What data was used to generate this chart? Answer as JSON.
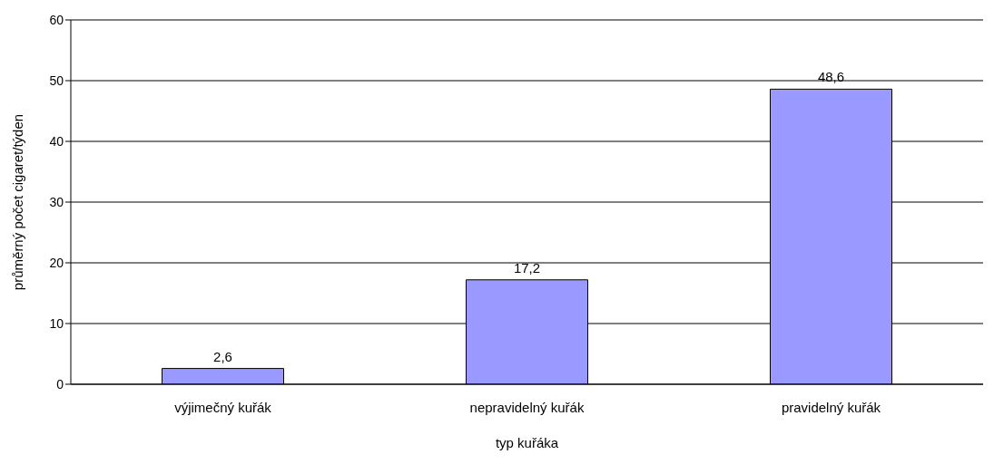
{
  "chart_data": {
    "type": "bar",
    "xlabel": "typ kuřáka",
    "ylabel": "průměrný počet cigaret/týden",
    "categories": [
      "výjimečný kuřák",
      "nepravidelný kuřák",
      "pravidelný kuřák"
    ],
    "values": [
      2.6,
      17.2,
      48.6
    ],
    "value_labels": [
      "2,6",
      "17,2",
      "48,6"
    ],
    "color": "#9999ff",
    "ylim": [
      0,
      60
    ],
    "yticks": [
      0,
      10,
      20,
      30,
      40,
      50,
      60
    ],
    "grid": "y",
    "legend": false
  }
}
